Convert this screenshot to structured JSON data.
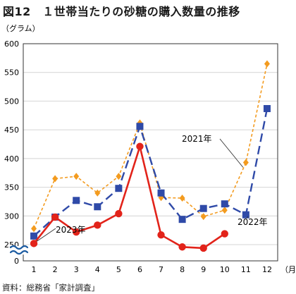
{
  "title": "図12　１世帯当たりの砂糖の購入数量の推移",
  "source": "資料：総務省「家計調査」",
  "chart_data": {
    "type": "line",
    "ylabel": "（グラム）",
    "xlabel": "（月）",
    "categories": [
      "1",
      "2",
      "3",
      "4",
      "5",
      "6",
      "7",
      "8",
      "9",
      "10",
      "11",
      "12"
    ],
    "ylim": [
      250,
      600
    ],
    "y_axis_break": true,
    "yticks": [
      "0",
      "250",
      "300",
      "350",
      "400",
      "450",
      "500",
      "550",
      "600"
    ],
    "grid": "horizontal",
    "series": [
      {
        "name": "2021年",
        "color": "#f39b1f",
        "style": "dotted",
        "marker": "diamond",
        "values": [
          278,
          365,
          369,
          340,
          369,
          462,
          332,
          331,
          299,
          310,
          393,
          565
        ]
      },
      {
        "name": "2022年",
        "color": "#2f4aa8",
        "style": "dashed",
        "marker": "square",
        "values": [
          265,
          298,
          327,
          316,
          348,
          456,
          340,
          294,
          313,
          321,
          302,
          487
        ]
      },
      {
        "name": "2023年",
        "color": "#e2231a",
        "style": "solid",
        "marker": "circle",
        "values": [
          252,
          298,
          272,
          284,
          304,
          421,
          267,
          246,
          244,
          269,
          null,
          null
        ]
      }
    ]
  }
}
